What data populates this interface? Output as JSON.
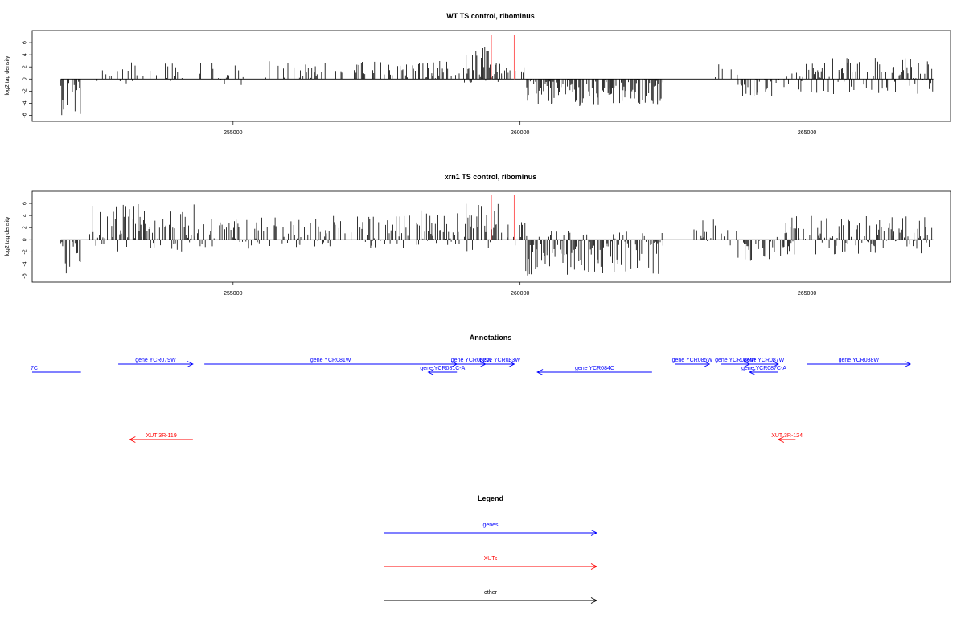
{
  "chart_data": [
    {
      "type": "bar",
      "title": "WT TS control, ribominus",
      "ylabel": "log2 tag density",
      "xlim": [
        251500,
        267500
      ],
      "ylim": [
        -7,
        8
      ],
      "yticks": [
        "-6",
        "-4",
        "-2",
        "0",
        "2",
        "4",
        "6"
      ],
      "xticks": [
        "255000",
        "260000",
        "265000"
      ],
      "markers_x": [
        259500,
        259900
      ],
      "series": [
        {
          "color": "#000000",
          "segments": [
            {
              "x0": 252000,
              "x1": 252350,
              "min": -6,
              "max": 0,
              "density": 0.7
            },
            {
              "x0": 252600,
              "x1": 255200,
              "min": -1,
              "max": 3,
              "density": 0.3
            },
            {
              "x0": 255400,
              "x1": 258200,
              "min": -0.5,
              "max": 3,
              "density": 0.35
            },
            {
              "x0": 258200,
              "x1": 259000,
              "min": -0.5,
              "max": 3,
              "density": 0.5
            },
            {
              "x0": 259000,
              "x1": 259700,
              "min": -1,
              "max": 5.5,
              "density": 0.85
            },
            {
              "x0": 259700,
              "x1": 260100,
              "min": -0.3,
              "max": 3,
              "density": 0.4
            },
            {
              "x0": 260100,
              "x1": 262500,
              "min": -4.5,
              "max": 0,
              "density": 0.8
            },
            {
              "x0": 263400,
              "x1": 263800,
              "min": -0.2,
              "max": 2.5,
              "density": 0.3
            },
            {
              "x0": 263800,
              "x1": 264400,
              "min": -3,
              "max": 0,
              "density": 0.6
            },
            {
              "x0": 264400,
              "x1": 264800,
              "min": -1.5,
              "max": 1,
              "density": 0.2
            },
            {
              "x0": 264800,
              "x1": 267200,
              "min": -2.5,
              "max": 3.5,
              "density": 0.7
            }
          ]
        }
      ]
    },
    {
      "type": "bar",
      "title": "xrn1 TS control, ribominus",
      "ylabel": "log2 tag density",
      "xlim": [
        251500,
        267500
      ],
      "ylim": [
        -7,
        8
      ],
      "yticks": [
        "-6",
        "-4",
        "-2",
        "0",
        "2",
        "4",
        "6"
      ],
      "xticks": [
        "255000",
        "260000",
        "265000"
      ],
      "markers_x": [
        259500,
        259900
      ],
      "series": [
        {
          "color": "#000000",
          "segments": [
            {
              "x0": 252000,
              "x1": 252350,
              "min": -6.5,
              "max": 0,
              "density": 0.7
            },
            {
              "x0": 252500,
              "x1": 254500,
              "min": -2,
              "max": 6,
              "density": 0.8
            },
            {
              "x0": 254500,
              "x1": 258200,
              "min": -1.5,
              "max": 4,
              "density": 0.6
            },
            {
              "x0": 258200,
              "x1": 259000,
              "min": -1,
              "max": 5,
              "density": 0.75
            },
            {
              "x0": 259000,
              "x1": 259700,
              "min": -2,
              "max": 7,
              "density": 0.9
            },
            {
              "x0": 259700,
              "x1": 260100,
              "min": -1,
              "max": 3,
              "density": 0.6
            },
            {
              "x0": 260100,
              "x1": 262500,
              "min": -6,
              "max": 1.5,
              "density": 0.85
            },
            {
              "x0": 263000,
              "x1": 263800,
              "min": -1,
              "max": 3.5,
              "density": 0.4
            },
            {
              "x0": 263800,
              "x1": 264600,
              "min": -3.5,
              "max": 0.5,
              "density": 0.6
            },
            {
              "x0": 264600,
              "x1": 267200,
              "min": -2.5,
              "max": 4,
              "density": 0.8
            }
          ]
        }
      ]
    }
  ],
  "annotations": {
    "title": "Annotations",
    "features": [
      {
        "label": "7C",
        "type": "genes",
        "x0": 251500,
        "x1": 252350,
        "dir": "none",
        "row": 2
      },
      {
        "label": "gene YCR079W",
        "type": "genes",
        "x0": 253000,
        "x1": 254300,
        "dir": "right",
        "row": 1
      },
      {
        "label": "gene YCR081W",
        "type": "genes",
        "x0": 254500,
        "x1": 258900,
        "dir": "right",
        "row": 1
      },
      {
        "label": "gene YCR081C-A",
        "type": "genes",
        "x0": 258400,
        "x1": 258900,
        "dir": "left",
        "row": 2
      },
      {
        "label": "gene YCR082W",
        "type": "genes",
        "x0": 258900,
        "x1": 259400,
        "dir": "right",
        "row": 1
      },
      {
        "label": "gene YCR083W",
        "type": "genes",
        "x0": 259400,
        "x1": 259900,
        "dir": "right",
        "row": 1
      },
      {
        "label": "gene YCR084C",
        "type": "genes",
        "x0": 260300,
        "x1": 262300,
        "dir": "left",
        "row": 2
      },
      {
        "label": "gene YCR085W",
        "type": "genes",
        "x0": 262700,
        "x1": 263300,
        "dir": "right",
        "row": 1
      },
      {
        "label": "gene YCR086W",
        "type": "genes",
        "x0": 263500,
        "x1": 264000,
        "dir": "right",
        "row": 1
      },
      {
        "label": "gene YCR087W",
        "type": "genes",
        "x0": 264000,
        "x1": 264500,
        "dir": "right",
        "row": 1
      },
      {
        "label": "gene YCR087C-A",
        "type": "genes",
        "x0": 264000,
        "x1": 264500,
        "dir": "left",
        "row": 2
      },
      {
        "label": "gene YCR088W",
        "type": "genes",
        "x0": 265000,
        "x1": 266800,
        "dir": "right",
        "row": 1
      },
      {
        "label": "XUT 3R-119",
        "type": "XUTs",
        "x0": 253200,
        "x1": 254300,
        "dir": "left",
        "row": 3
      },
      {
        "label": "XUT 3R-124",
        "type": "XUTs",
        "x0": 264500,
        "x1": 264800,
        "dir": "left",
        "row": 3
      }
    ]
  },
  "legend": {
    "title": "Legend",
    "items": [
      {
        "label": "genes",
        "color": "#0000ff"
      },
      {
        "label": "XUTs",
        "color": "#ff0000"
      },
      {
        "label": "other",
        "color": "#000000"
      }
    ]
  },
  "colors": {
    "genes": "#0000ff",
    "XUTs": "#ff0000",
    "marker": "#ff6666",
    "data": "#000000"
  }
}
